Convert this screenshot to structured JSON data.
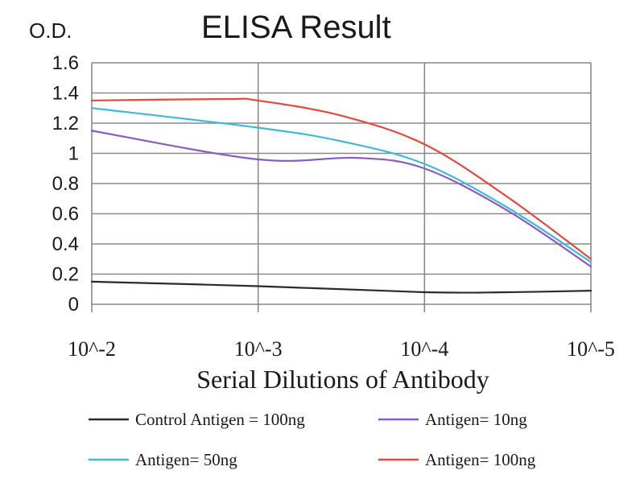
{
  "chart_data": {
    "type": "line",
    "title": "ELISA Result",
    "ylabel": "O.D.",
    "xlabel": "Serial Dilutions of Antibody",
    "categories": [
      "10^-2",
      "10^-3",
      "10^-4",
      "10^-5"
    ],
    "ylim": [
      0,
      1.6
    ],
    "yticks": [
      "0",
      "0.2",
      "0.4",
      "0.6",
      "0.8",
      "1",
      "1.2",
      "1.4",
      "1.6"
    ],
    "grid": true,
    "legend_position": "bottom",
    "series": [
      {
        "name": "Control Antigen = 100ng",
        "color": "#2b2b2b",
        "points": [
          [
            0,
            0.15
          ],
          [
            1,
            0.12
          ],
          [
            2,
            0.08
          ],
          [
            2.5,
            0.08
          ],
          [
            3,
            0.09
          ]
        ]
      },
      {
        "name": "Antigen= 10ng",
        "color": "#8a5cc0",
        "points": [
          [
            0,
            1.15
          ],
          [
            1,
            0.96
          ],
          [
            1.6,
            0.97
          ],
          [
            2,
            0.9
          ],
          [
            2.5,
            0.62
          ],
          [
            3,
            0.25
          ]
        ]
      },
      {
        "name": "Antigen= 50ng",
        "color": "#3fb9d6",
        "points": [
          [
            0,
            1.3
          ],
          [
            1,
            1.17
          ],
          [
            1.5,
            1.08
          ],
          [
            2,
            0.93
          ],
          [
            2.5,
            0.64
          ],
          [
            3,
            0.28
          ]
        ]
      },
      {
        "name": "Antigen= 100ng",
        "color": "#e04a3f",
        "points": [
          [
            0,
            1.35
          ],
          [
            0.8,
            1.36
          ],
          [
            1,
            1.35
          ],
          [
            1.5,
            1.25
          ],
          [
            2,
            1.06
          ],
          [
            2.5,
            0.71
          ],
          [
            3,
            0.3
          ]
        ]
      }
    ]
  }
}
